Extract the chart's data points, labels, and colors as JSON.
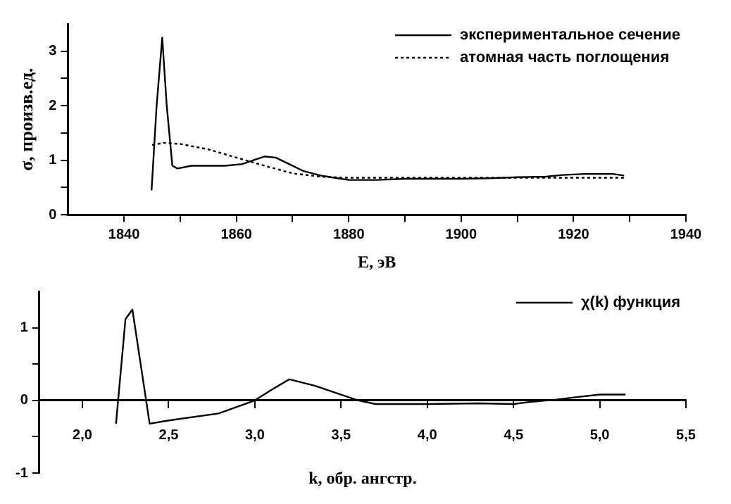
{
  "chart_data": [
    {
      "type": "line",
      "xlabel": "E, эВ",
      "ylabel": "σ, произв.ед.",
      "xlim": [
        1830,
        1940
      ],
      "ylim": [
        0,
        3.5
      ],
      "xticks": [
        1840,
        {
          "value": 1850,
          "label": null
        },
        1860,
        {
          "value": 1870,
          "label": null
        },
        1880,
        {
          "value": 1890,
          "label": null
        },
        1900,
        {
          "value": 1910,
          "label": null
        },
        1920,
        {
          "value": 1930,
          "label": null
        },
        1940
      ],
      "yticks": [
        0,
        {
          "value": 0.5,
          "label": null
        },
        1,
        {
          "value": 1.5,
          "label": null
        },
        2,
        {
          "value": 2.5,
          "label": null
        },
        3
      ],
      "grid": false,
      "legend": "top right",
      "marker": "none",
      "series": [
        {
          "name": "экспериментальное сечение",
          "color": "#000000",
          "line_style": "solid",
          "x": [
            1844.9,
            1845.8,
            1846.8,
            1847.6,
            1848.6,
            1849.5,
            1852,
            1858,
            1861,
            1863,
            1865,
            1867,
            1869,
            1872,
            1875,
            1878,
            1880,
            1885,
            1890,
            1900,
            1905,
            1910,
            1915,
            1918,
            1922,
            1927,
            1929
          ],
          "values": [
            0.45,
            2.0,
            3.25,
            2.0,
            0.9,
            0.85,
            0.9,
            0.9,
            0.93,
            1.0,
            1.07,
            1.05,
            0.95,
            0.8,
            0.72,
            0.67,
            0.64,
            0.64,
            0.66,
            0.66,
            0.67,
            0.69,
            0.7,
            0.73,
            0.75,
            0.75,
            0.72
          ]
        },
        {
          "name": "атомная часть поглощения",
          "color": "#000000",
          "line_style": "dotted",
          "x": [
            1845,
            1847,
            1850,
            1855,
            1860,
            1865,
            1870,
            1875,
            1880,
            1900,
            1929
          ],
          "values": [
            1.28,
            1.32,
            1.3,
            1.2,
            1.05,
            0.9,
            0.76,
            0.7,
            0.68,
            0.68,
            0.68
          ]
        }
      ]
    },
    {
      "type": "line",
      "xlabel": "k, обр. ангстр.",
      "xlim": [
        1.75,
        5.5
      ],
      "ylim": [
        -1,
        1.5
      ],
      "xticks": [
        {
          "value": 2,
          "label": "2,0"
        },
        {
          "value": 2.5,
          "label": "2,5"
        },
        {
          "value": 3,
          "label": "3,0"
        },
        {
          "value": 3.5,
          "label": "3,5"
        },
        {
          "value": 4,
          "label": "4,0"
        },
        {
          "value": 4.5,
          "label": "4,5"
        },
        {
          "value": 5,
          "label": "5,0"
        },
        {
          "value": 5.5,
          "label": "5,5"
        }
      ],
      "yticks": [
        -1,
        {
          "value": -0.5,
          "label": null
        },
        0,
        {
          "value": 0.5,
          "label": null
        },
        1
      ],
      "grid": false,
      "legend": "top right",
      "marker": "none",
      "series": [
        {
          "name": "χ(k) функция",
          "color": "#000000",
          "line_style": "solid",
          "x": [
            2.195,
            2.25,
            2.29,
            2.39,
            2.49,
            2.79,
            3.0,
            3.1,
            3.2,
            3.35,
            3.5,
            3.6,
            3.7,
            4.0,
            4.3,
            4.5,
            4.6,
            4.75,
            4.85,
            5.0,
            5.15
          ],
          "values": [
            -0.32,
            1.12,
            1.25,
            -0.32,
            -0.28,
            -0.18,
            0.0,
            0.15,
            0.29,
            0.2,
            0.08,
            0.0,
            -0.05,
            -0.05,
            -0.04,
            -0.05,
            -0.02,
            0.01,
            0.04,
            0.08,
            0.08
          ]
        }
      ]
    }
  ]
}
